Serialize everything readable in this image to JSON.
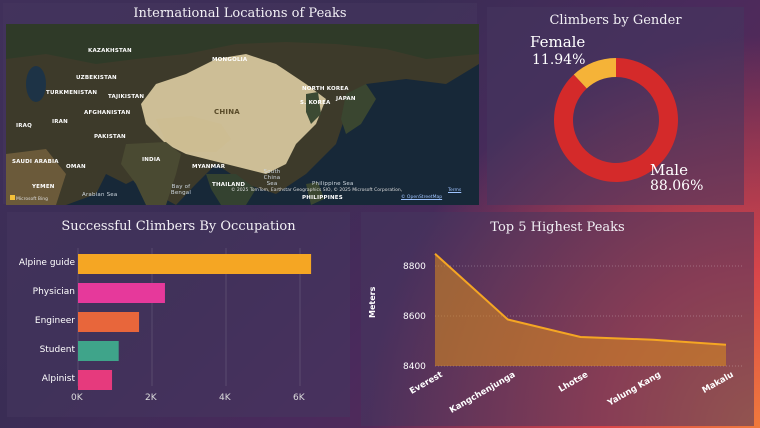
{
  "map": {
    "title": "International Locations of Peaks",
    "labels": [
      {
        "text": "KAZAKHSTAN",
        "cls": ""
      },
      {
        "text": "MONGOLIA",
        "cls": ""
      },
      {
        "text": "UZBEKISTAN",
        "cls": ""
      },
      {
        "text": "TURKMENISTAN",
        "cls": ""
      },
      {
        "text": "TAJIKISTAN",
        "cls": ""
      },
      {
        "text": "AFGHANISTAN",
        "cls": ""
      },
      {
        "text": "IRAN",
        "cls": ""
      },
      {
        "text": "IRAQ",
        "cls": ""
      },
      {
        "text": "PAKISTAN",
        "cls": ""
      },
      {
        "text": "SAUDI ARABIA",
        "cls": ""
      },
      {
        "text": "OMAN",
        "cls": ""
      },
      {
        "text": "INDIA",
        "cls": ""
      },
      {
        "text": "CHINA",
        "cls": "big"
      },
      {
        "text": "NORTH KOREA",
        "cls": ""
      },
      {
        "text": "S. KOREA",
        "cls": ""
      },
      {
        "text": "JAPAN",
        "cls": ""
      },
      {
        "text": "MYANMAR",
        "cls": ""
      },
      {
        "text": "THAILAND",
        "cls": ""
      },
      {
        "text": "YEMEN",
        "cls": ""
      },
      {
        "text": "Arabian Sea",
        "cls": "sea"
      },
      {
        "text": "Bay of Bengal",
        "cls": "sea"
      },
      {
        "text": "South China Sea",
        "cls": "sea"
      },
      {
        "text": "Philippine Sea",
        "cls": "sea"
      },
      {
        "text": "PHILIPPINES",
        "cls": ""
      }
    ],
    "copyright": "© 2025 TomTom, Earthstar Geographics SIO, © 2025 Microsoft Corporation,",
    "terms": "Terms",
    "osm": "© OpenStreetMap",
    "bing": "Microsoft Bing"
  },
  "gender": {
    "title": "Climbers by Gender",
    "female_label": "Female",
    "female_pct": "11.94%",
    "male_label": "Male",
    "male_pct": "88.06%",
    "female_value": 11.94,
    "male_value": 88.06,
    "female_color": "#f5b338",
    "male_color": "#d42a2a"
  },
  "occupation": {
    "title": "Successful Climbers By Occupation",
    "xticks": [
      "0K",
      "2K",
      "4K",
      "6K"
    ],
    "bars": [
      {
        "label": "Alpine guide",
        "value": 6300,
        "color": "#f5a623"
      },
      {
        "label": "Physician",
        "value": 2350,
        "color": "#e6399b"
      },
      {
        "label": "Engineer",
        "value": 1650,
        "color": "#e8663b"
      },
      {
        "label": "Student",
        "value": 1100,
        "color": "#3fa48a"
      },
      {
        "label": "Alpinist",
        "value": 920,
        "color": "#e63a7d"
      }
    ]
  },
  "chart_data": {
    "type": "area",
    "title": "Top 5 Highest Peaks",
    "ylabel": "Meters",
    "categories": [
      "Everest",
      "Kangchenjunga",
      "Lhotse",
      "Yalung Kang",
      "Makalu"
    ],
    "values": [
      8849,
      8586,
      8516,
      8505,
      8485
    ],
    "yticks": [
      "8400",
      "8600",
      "8800"
    ],
    "ylim": [
      8400,
      8880
    ],
    "line_color": "#f5a623"
  }
}
